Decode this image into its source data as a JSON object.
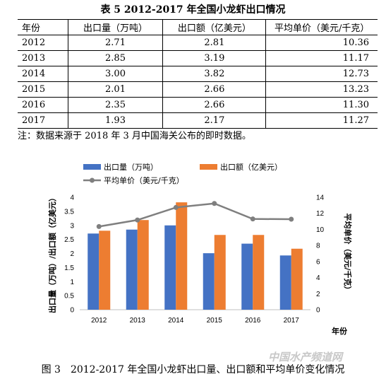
{
  "table": {
    "title": "表 5 2012-2017 年全国小龙虾出口情况",
    "headers": [
      "年份",
      "出口量（万吨）",
      "出口额（亿美元）",
      "平均单价（美元/千克）"
    ],
    "rows": [
      [
        "2012",
        "2.71",
        "2.81",
        "10.36"
      ],
      [
        "2013",
        "2.85",
        "3.19",
        "11.17"
      ],
      [
        "2014",
        "3.00",
        "3.82",
        "12.73"
      ],
      [
        "2015",
        "2.01",
        "2.66",
        "13.23"
      ],
      [
        "2016",
        "2.35",
        "2.66",
        "11.30"
      ],
      [
        "2017",
        "1.93",
        "2.17",
        "11.27"
      ]
    ],
    "note": "注：数据来源于 2018 年 3 月中国海关公布的即时数据。"
  },
  "chart_data": {
    "type": "bar",
    "categories": [
      "2012",
      "2013",
      "2014",
      "2015",
      "2016",
      "2017"
    ],
    "series": [
      {
        "name": "出口量（万吨）",
        "type": "bar",
        "axis": "left",
        "color": "#4472c4",
        "values": [
          2.71,
          2.85,
          3.0,
          2.01,
          2.35,
          1.93
        ]
      },
      {
        "name": "出口额（亿美元）",
        "type": "bar",
        "axis": "left",
        "color": "#ed7d31",
        "values": [
          2.81,
          3.19,
          3.82,
          2.66,
          2.66,
          2.17
        ]
      },
      {
        "name": "平均单价（美元/千克）",
        "type": "line",
        "axis": "right",
        "color": "#7f7f7f",
        "values": [
          10.36,
          11.17,
          12.73,
          13.23,
          11.3,
          11.27
        ]
      }
    ],
    "ylabel_left": "出口量（万吨）/出口额（亿美元）",
    "ylabel_right": "平均单价（美元/千克）",
    "xlabel": "年份",
    "ylim_left": [
      0,
      4
    ],
    "yticks_left": [
      "0",
      "0.5",
      "1",
      "1.5",
      "2",
      "2.5",
      "3",
      "3.5",
      "4"
    ],
    "ylim_right": [
      0,
      14
    ],
    "yticks_right": [
      "0",
      "2",
      "4",
      "6",
      "8",
      "10",
      "12",
      "14"
    ],
    "grid": false,
    "legend": "top"
  },
  "caption": "图 3　2012-2017 年全国小龙虾出口量、出口额和平均单价变化情况",
  "watermark": "中国水产频道网"
}
